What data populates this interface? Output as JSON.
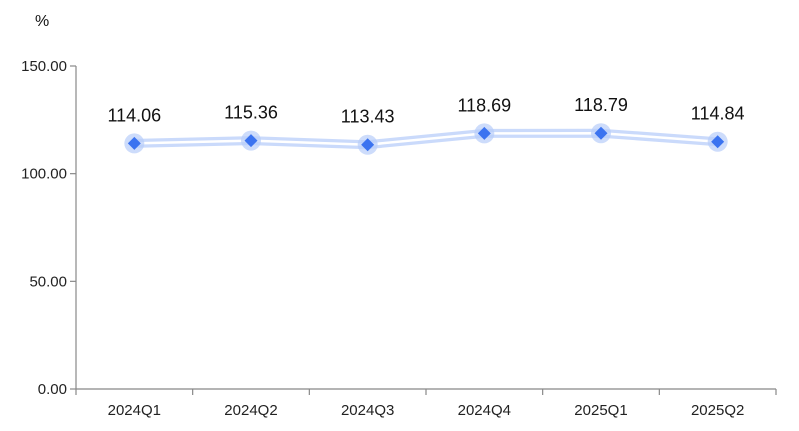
{
  "chart_data": {
    "type": "line",
    "title": "",
    "xlabel": "",
    "ylabel": "",
    "unit": "%",
    "categories": [
      "2024Q1",
      "2024Q2",
      "2024Q3",
      "2024Q4",
      "2025Q1",
      "2025Q2"
    ],
    "series": [
      {
        "values": [
          114.06,
          115.36,
          113.43,
          118.69,
          118.79,
          114.84
        ],
        "value_labels": [
          "114.06",
          "115.36",
          "113.43",
          "118.69",
          "118.79",
          "114.84"
        ],
        "color": "#3b73f0",
        "glow_color": "#b8cdfa",
        "marker": "diamond"
      }
    ],
    "ylim": [
      0,
      150
    ],
    "yticks": [
      0,
      50,
      100,
      150
    ],
    "ytick_labels": [
      "0.00",
      "50.00",
      "100.00",
      "150.00"
    ],
    "grid": false,
    "legend": "none",
    "axis_color": "#888888"
  }
}
